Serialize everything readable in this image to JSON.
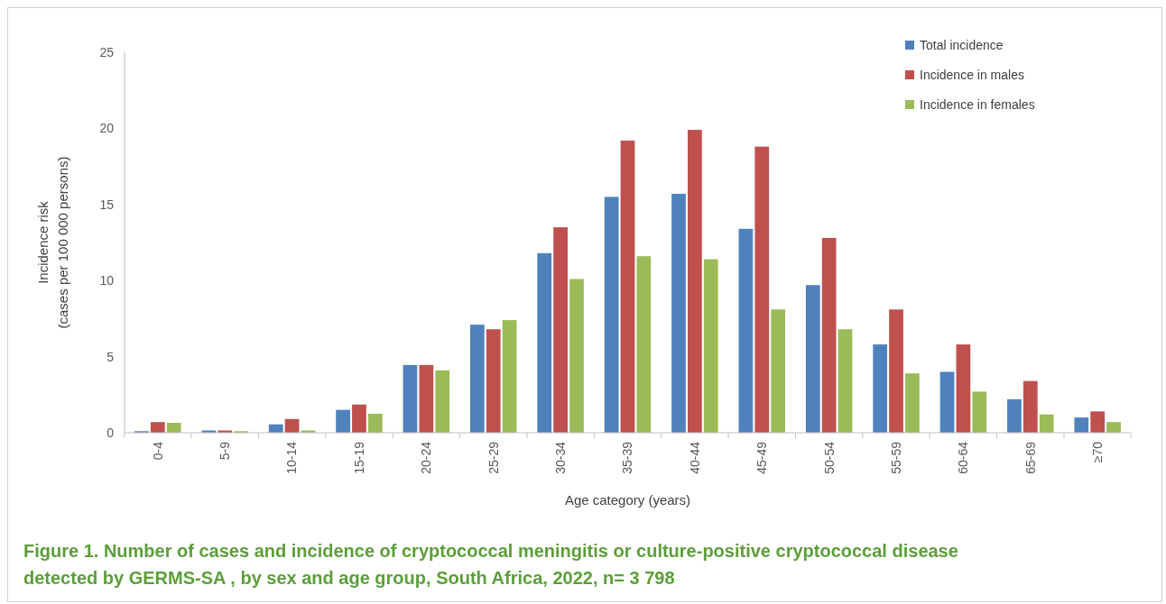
{
  "chart_data": {
    "type": "bar",
    "title": "Figure 1. Number of cases and incidence of cryptococcal meningitis or culture-positive cryptococcal disease detected by GERMS-SA , by sex and age group, South Africa, 2022, n= 3 798",
    "xlabel": "Age category (years)",
    "ylabel": "Incidence risk\n(cases per 100 000 persons)",
    "categories": [
      "0-4",
      "5-9",
      "10-14",
      "15-19",
      "20-24",
      "25-29",
      "30-34",
      "35-39",
      "40-44",
      "45-49",
      "50-54",
      "55-59",
      "60-64",
      "65-69",
      "≥70"
    ],
    "series": [
      {
        "name": "Total incidence",
        "color": "#4f81bd",
        "values": [
          0.1,
          0.15,
          0.55,
          1.5,
          4.45,
          7.1,
          11.8,
          15.5,
          15.7,
          13.4,
          9.7,
          5.8,
          4.0,
          2.2,
          1.0
        ]
      },
      {
        "name": "Incidence in males",
        "color": "#c0504d",
        "values": [
          0.7,
          0.15,
          0.9,
          1.85,
          4.45,
          6.8,
          13.5,
          19.2,
          19.9,
          18.8,
          12.8,
          8.1,
          5.8,
          3.4,
          1.4
        ]
      },
      {
        "name": "Incidence in females",
        "color": "#9bbb59",
        "values": [
          0.65,
          0.1,
          0.15,
          1.25,
          4.1,
          7.4,
          10.1,
          11.6,
          11.4,
          8.1,
          6.8,
          3.9,
          2.7,
          1.2,
          0.7
        ]
      }
    ],
    "ylim": [
      0,
      25
    ],
    "yticks": [
      0,
      5,
      10,
      15,
      20,
      25
    ],
    "grid": false,
    "legend": "top right"
  }
}
